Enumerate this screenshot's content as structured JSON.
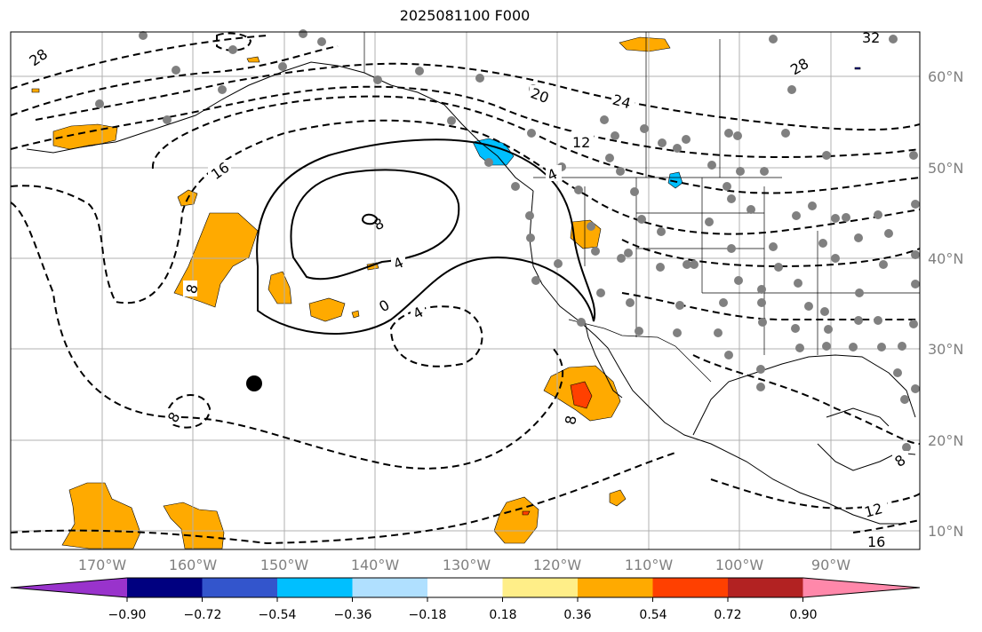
{
  "title": "2025081100 F000",
  "lat_labels": [
    "60°N",
    "50°N",
    "40°N",
    "30°N",
    "20°N",
    "10°N"
  ],
  "lon_labels": [
    "170°W",
    "160°W",
    "150°W",
    "140°W",
    "130°W",
    "120°W",
    "110°W",
    "100°W",
    "90°W"
  ],
  "colorbar": {
    "colors": [
      "#9933cc",
      "#000080",
      "#3355cc",
      "#00bfff",
      "#b0e0ff",
      "#ffffff",
      "#ffee88",
      "#ffaa00",
      "#ff4000",
      "#b22222",
      "#ff88aa"
    ],
    "tick_labels": [
      "−0.90",
      "−0.72",
      "−0.54",
      "−0.36",
      "−0.18",
      "0.18",
      "0.36",
      "0.54",
      "0.72",
      "0.90"
    ]
  },
  "contour_labels": {
    "n28": "28",
    "n16": "16",
    "n20": "20",
    "n24": "24",
    "n12": "12",
    "n4a": "4",
    "p8": "8",
    "p4": "4",
    "zero": "0",
    "n4b": "4",
    "n8a": "8",
    "n8b": "8",
    "n8c": "8",
    "n8d": "8",
    "n28b": "28",
    "n32": "32",
    "n12b": "12",
    "n16b": "16"
  },
  "colors": {
    "station": "#808080",
    "grid": "#b0b0b0"
  }
}
